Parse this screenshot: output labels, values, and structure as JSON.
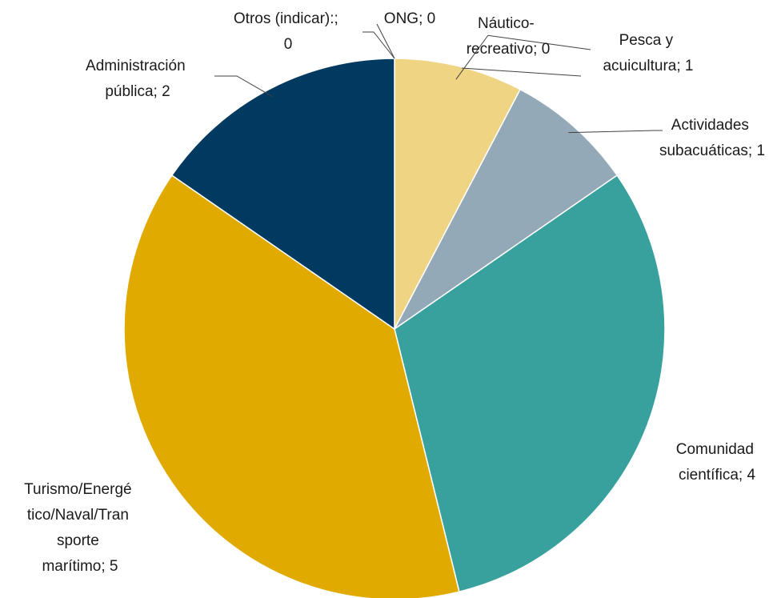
{
  "chart_data": {
    "type": "pie",
    "categories": [
      "Náutico-recreativo",
      "Pesca y acuicultura",
      "Actividades subacuáticas",
      "Comunidad científica",
      "Turismo/Energético/Naval/Transporte marítimo",
      "Administración pública",
      "Otros (indicar):",
      "ONG"
    ],
    "values": [
      0,
      1,
      1,
      4,
      5,
      2,
      0,
      0
    ],
    "colors": [
      "#f3c23a",
      "#efd484",
      "#94a9b8",
      "#38a19d",
      "#e0aa00",
      "#013a60",
      "#e0aa00",
      "#e0aa00"
    ],
    "labels": [
      [
        "Náutico-",
        "recreativo; 0"
      ],
      [
        "Pesca y",
        "acuicultura; 1"
      ],
      [
        "Actividades",
        "subacuáticas; 1"
      ],
      [
        "Comunidad",
        "científica; 4"
      ],
      [
        "Turismo/Energé",
        "tico/Naval/Tran",
        "sporte",
        "marítimo; 5"
      ],
      [
        "Administración",
        "pública; 2"
      ],
      [
        "Otros (indicar):;",
        "0"
      ],
      [
        "ONG; 0"
      ]
    ]
  }
}
